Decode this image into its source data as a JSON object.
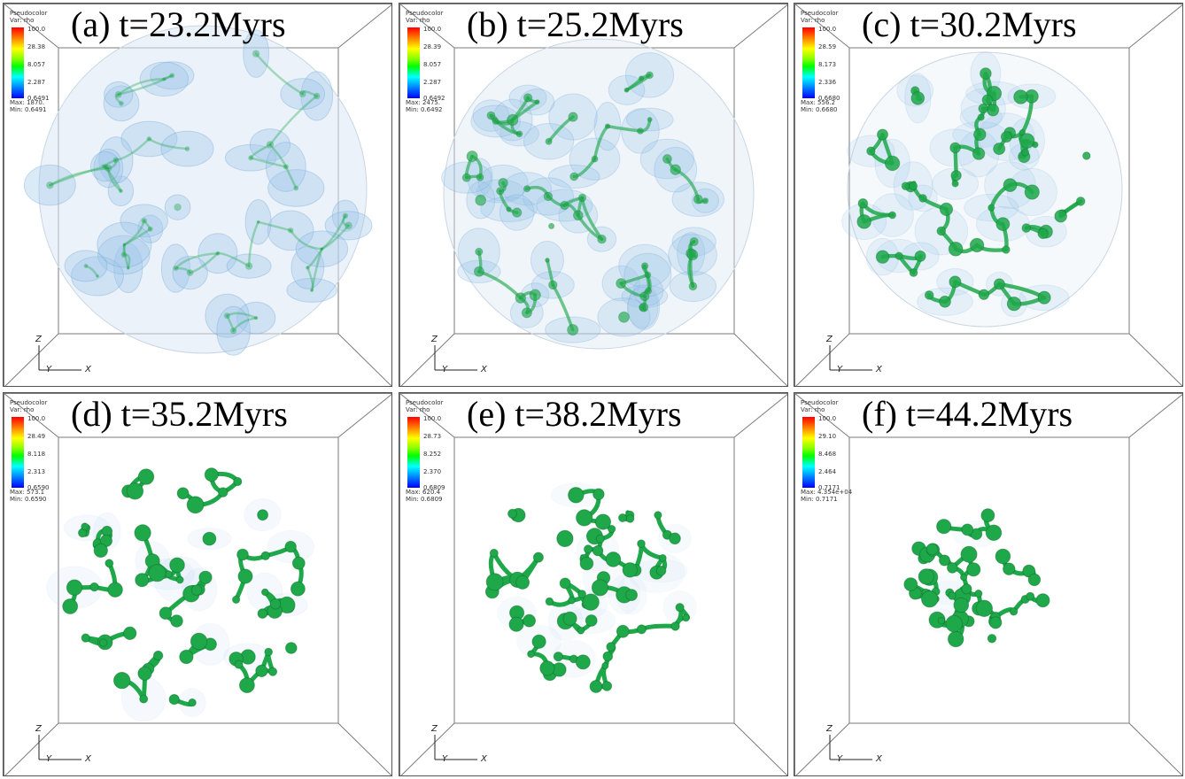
{
  "panels": [
    {
      "title": "(a) t=23.2Myrs",
      "legend": {
        "header": "Pseudocolor\nVar: rho",
        "ticks": [
          "100.0",
          "28.38",
          "8.057",
          "2.287",
          "0.6491"
        ],
        "max": "Max: 1870.",
        "min": "Min: 0.6491"
      },
      "axes": {
        "z": "Z",
        "y": "Y",
        "x": "X"
      }
    },
    {
      "title": "(b) t=25.2Myrs",
      "legend": {
        "header": "Pseudocolor\nVar: rho",
        "ticks": [
          "100.0",
          "28.39",
          "8.057",
          "2.287",
          "0.6492"
        ],
        "max": "Max: 2475.",
        "min": "Min: 0.6492"
      },
      "axes": {
        "z": "Z",
        "y": "Y",
        "x": "X"
      }
    },
    {
      "title": "(c) t=30.2Myrs",
      "legend": {
        "header": "Pseudocolor\nVar: rho",
        "ticks": [
          "100.0",
          "28.59",
          "8.173",
          "2.336",
          "0.6680"
        ],
        "max": "Max: 556.2",
        "min": "Min: 0.6680"
      },
      "axes": {
        "z": "Z",
        "y": "Y",
        "x": "X"
      }
    },
    {
      "title": "(d) t=35.2Myrs",
      "legend": {
        "header": "Pseudocolor\nVar: rho",
        "ticks": [
          "100.0",
          "28.49",
          "8.118",
          "2.313",
          "0.6590"
        ],
        "max": "Max: 573.1",
        "min": "Min: 0.6590"
      },
      "axes": {
        "z": "Z",
        "y": "Y",
        "x": "X"
      }
    },
    {
      "title": "(e) t=38.2Myrs",
      "legend": {
        "header": "Pseudocolor\nVar: rho",
        "ticks": [
          "100.0",
          "28.73",
          "8.252",
          "2.370",
          "0.6809"
        ],
        "max": "Max: 620.4",
        "min": "Min: 0.6809"
      },
      "axes": {
        "z": "Z",
        "y": "Y",
        "x": "X"
      }
    },
    {
      "title": "(f) t=44.2Myrs",
      "legend": {
        "header": "Pseudocolor\nVar: rho",
        "ticks": [
          "100.0",
          "29.10",
          "8.468",
          "2.464",
          "0.7171"
        ],
        "max": "Max: 4.354e+04",
        "min": "Min: 0.7171"
      },
      "axes": {
        "z": "Z",
        "y": "Y",
        "x": "X"
      }
    }
  ],
  "colors": {
    "filament": "#1fa84a",
    "filament_dark": "#0d6e2c",
    "haze": "#9cc4e8",
    "haze_light": "#dbe7f4",
    "box_edge": "#7a7a7a"
  }
}
